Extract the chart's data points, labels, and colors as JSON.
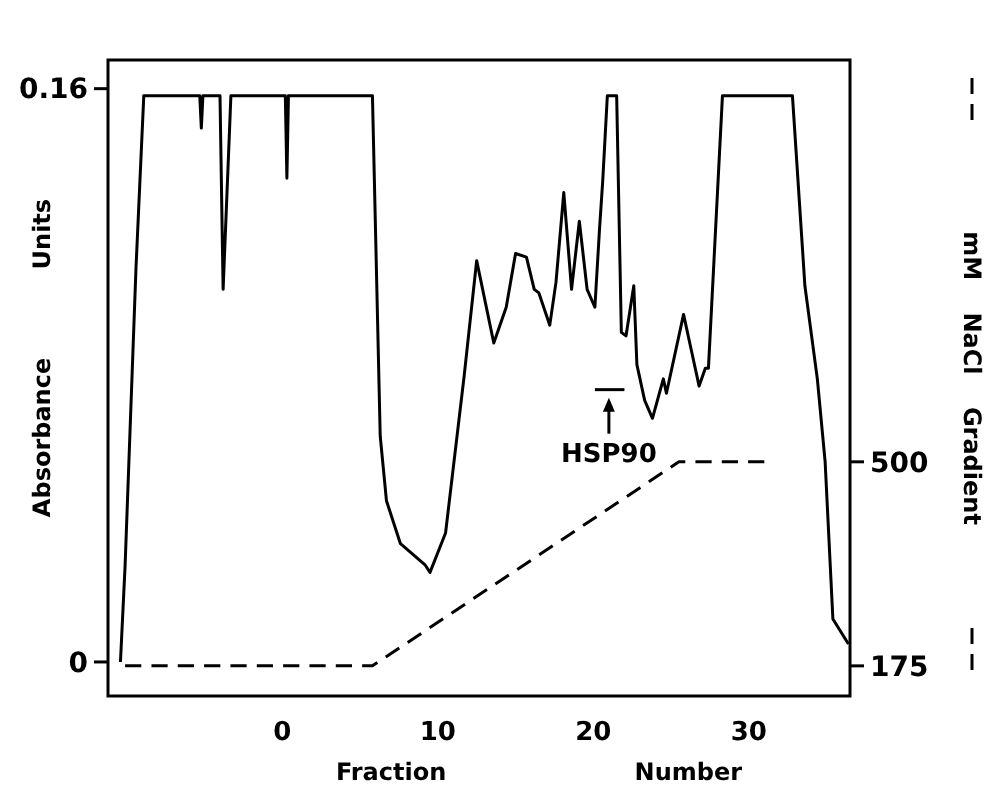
{
  "chart_data": {
    "type": "line",
    "xlabel": "Fraction Number",
    "ylabel": "Absorbance Units",
    "y2label": "mM NaCl Gradient",
    "xlim": [
      -11.2,
      36.5
    ],
    "xticks": [
      0,
      10,
      20,
      30
    ],
    "ylim": [
      -0.0095,
      0.168
    ],
    "yticks": [
      0,
      0.16
    ],
    "y2lim": [
      127,
      1140
    ],
    "y2ticks": [
      175,
      500
    ],
    "series": [
      {
        "color": "#000000",
        "line_style": "solid",
        "x": [
          -10.4,
          -10.1,
          -9.4,
          -8.9,
          -5.3,
          -5.2,
          -5.1,
          -4.0,
          -3.8,
          -3.3,
          0.2,
          0.3,
          0.4,
          5.8,
          6.3,
          6.7,
          7.6,
          9.2,
          9.5,
          10.5,
          11.7,
          12.5,
          13.6,
          14.4,
          15.0,
          15.7,
          16.2,
          16.5,
          17.2,
          17.6,
          18.1,
          18.6,
          19.1,
          19.6,
          20.1,
          20.4,
          20.6,
          20.9,
          21.5,
          21.8,
          22.1,
          22.6,
          22.8,
          23.3,
          23.8,
          24.5,
          24.7,
          25.8,
          26.3,
          26.8,
          27.2,
          27.4,
          28.3,
          32.8,
          33.6,
          34.4,
          34.9,
          35.4,
          36.4
        ],
        "values": [
          0,
          0.027,
          0.11,
          0.158,
          0.158,
          0.149,
          0.158,
          0.158,
          0.104,
          0.158,
          0.158,
          0.135,
          0.158,
          0.158,
          0.063,
          0.045,
          0.033,
          0.027,
          0.025,
          0.036,
          0.08,
          0.112,
          0.089,
          0.099,
          0.114,
          0.113,
          0.104,
          0.103,
          0.094,
          0.106,
          0.131,
          0.104,
          0.123,
          0.104,
          0.099,
          0.121,
          0.134,
          0.158,
          0.158,
          0.092,
          0.091,
          0.105,
          0.083,
          0.073,
          0.068,
          0.079,
          0.075,
          0.097,
          0.087,
          0.077,
          0.082,
          0.082,
          0.158,
          0.158,
          0.105,
          0.079,
          0.056,
          0.012,
          0.005
        ]
      },
      {
        "color": "#000000",
        "line_style": "dashed",
        "axis": "y2",
        "x": [
          -10.1,
          5.8,
          25.5,
          31.0
        ],
        "values": [
          175,
          175,
          500,
          500
        ]
      },
      {
        "color": "#000000",
        "line_style": "solid",
        "x": [
          20.1,
          22.0
        ],
        "values": [
          0.076,
          0.076
        ]
      }
    ],
    "annotations": [
      {
        "text": "HSP90",
        "x": 21.0,
        "y": 0.076
      }
    ],
    "grid": false,
    "marker": "none"
  }
}
